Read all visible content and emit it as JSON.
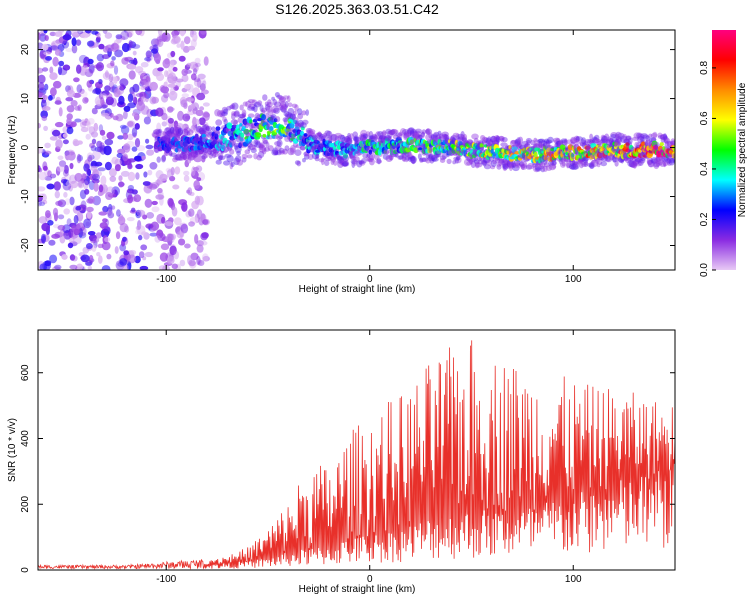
{
  "chart_data": [
    {
      "type": "heatmap",
      "title": "S126.2025.363.03.51.C42",
      "xlabel": "Height of straight line (km)",
      "ylabel": "Frequency (Hz)",
      "xlim": [
        -163,
        150
      ],
      "ylim": [
        -25,
        24
      ],
      "x_ticks": [
        -100,
        0,
        100
      ],
      "y_ticks": [
        -20,
        -10,
        0,
        10,
        20
      ],
      "colorbar": {
        "label": "Normalized spectral amplitude",
        "range": [
          0,
          0.95
        ],
        "ticks": [
          0.0,
          0.2,
          0.4,
          0.6,
          0.8
        ],
        "colormap": [
          "#e8c9f5",
          "#8a2be2",
          "#0000ff",
          "#00ffff",
          "#00ff00",
          "#ffff00",
          "#ff8c00",
          "#ff0000",
          "#ff007f"
        ]
      },
      "ridge": {
        "x": [
          -105,
          -90,
          -75,
          -62,
          -50,
          -42,
          -35,
          -25,
          -10,
          0,
          20,
          40,
          60,
          80,
          100,
          120,
          140,
          150
        ],
        "freq": [
          0.5,
          0.8,
          1.5,
          3,
          4.5,
          5,
          2.5,
          0,
          -0.5,
          0,
          0.5,
          0,
          -1,
          -1.5,
          -1,
          -0.5,
          -0.5,
          -0.5
        ],
        "amplitude": [
          0.25,
          0.25,
          0.3,
          0.4,
          0.45,
          0.5,
          0.35,
          0.3,
          0.35,
          0.4,
          0.45,
          0.5,
          0.55,
          0.6,
          0.65,
          0.75,
          0.85,
          0.8
        ]
      },
      "noise_region_x": [
        -163,
        -80
      ]
    },
    {
      "type": "line",
      "title": "",
      "xlabel": "Height of straight line (km)",
      "ylabel": "SNR (10 * v/v)",
      "xlim": [
        -163,
        150
      ],
      "ylim": [
        0,
        730
      ],
      "x_ticks": [
        -100,
        0,
        100
      ],
      "y_ticks": [
        0,
        200,
        400,
        600
      ],
      "color": "#e8302a",
      "envelope": {
        "x": [
          -163,
          -120,
          -100,
          -80,
          -70,
          -60,
          -50,
          -40,
          -30,
          -20,
          -10,
          0,
          10,
          20,
          30,
          40,
          50,
          60,
          70,
          80,
          90,
          100,
          110,
          120,
          130,
          140,
          150
        ],
        "baseline": [
          10,
          10,
          10,
          15,
          20,
          25,
          35,
          50,
          60,
          70,
          90,
          100,
          110,
          130,
          150,
          160,
          170,
          170,
          175,
          180,
          200,
          210,
          230,
          250,
          260,
          280,
          300
        ],
        "peak": [
          15,
          15,
          25,
          35,
          45,
          70,
          130,
          210,
          330,
          320,
          420,
          480,
          520,
          560,
          640,
          680,
          710,
          660,
          640,
          610,
          600,
          580,
          560,
          560,
          540,
          520,
          510
        ]
      }
    }
  ]
}
